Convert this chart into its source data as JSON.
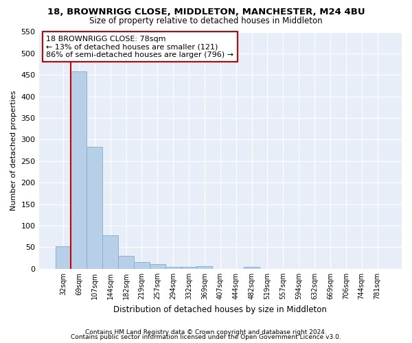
{
  "title": "18, BROWNRIGG CLOSE, MIDDLETON, MANCHESTER, M24 4BU",
  "subtitle": "Size of property relative to detached houses in Middleton",
  "xlabel": "Distribution of detached houses by size in Middleton",
  "ylabel": "Number of detached properties",
  "bar_color": "#b8cfe8",
  "bar_edge_color": "#7aadd4",
  "highlight_color": "#cc0000",
  "background_color": "#e8eef8",
  "grid_color": "#ffffff",
  "categories": [
    "32sqm",
    "69sqm",
    "107sqm",
    "144sqm",
    "182sqm",
    "219sqm",
    "257sqm",
    "294sqm",
    "332sqm",
    "369sqm",
    "407sqm",
    "444sqm",
    "482sqm",
    "519sqm",
    "557sqm",
    "594sqm",
    "632sqm",
    "669sqm",
    "706sqm",
    "744sqm",
    "781sqm"
  ],
  "values": [
    53,
    458,
    283,
    78,
    30,
    15,
    11,
    5,
    5,
    6,
    0,
    0,
    5,
    0,
    0,
    0,
    0,
    0,
    0,
    0,
    0
  ],
  "property_bin_index": 1,
  "annotation_text": "18 BROWNRIGG CLOSE: 78sqm\n← 13% of detached houses are smaller (121)\n86% of semi-detached houses are larger (796) →",
  "ylim": [
    0,
    550
  ],
  "yticks": [
    0,
    50,
    100,
    150,
    200,
    250,
    300,
    350,
    400,
    450,
    500,
    550
  ],
  "footer_line1": "Contains HM Land Registry data © Crown copyright and database right 2024.",
  "footer_line2": "Contains public sector information licensed under the Open Government Licence v3.0."
}
